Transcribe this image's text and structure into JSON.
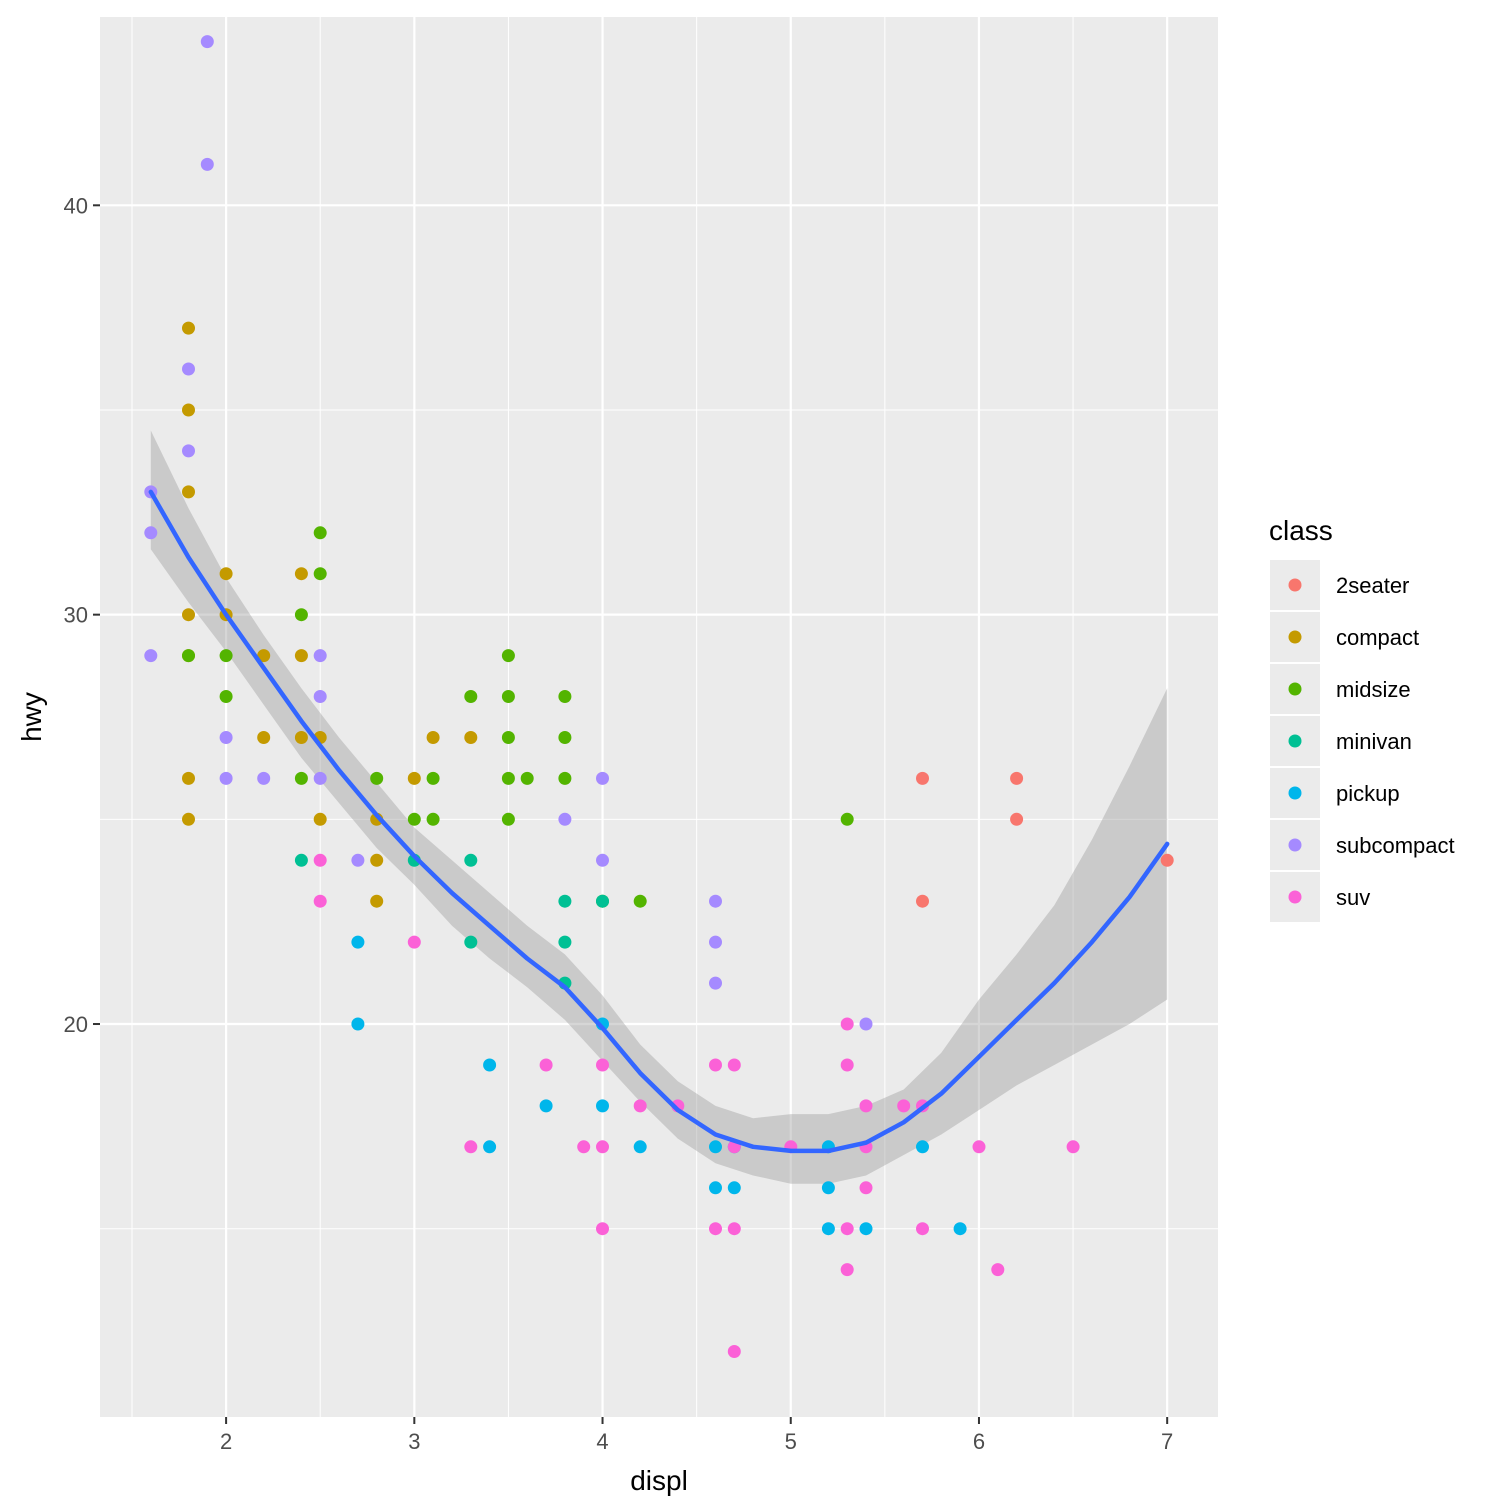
{
  "chart_data": {
    "type": "scatter",
    "title": "",
    "xlabel": "displ",
    "ylabel": "hwy",
    "xlim": [
      1.33,
      7.27
    ],
    "ylim": [
      10.4,
      44.6
    ],
    "x_ticks": [
      2,
      3,
      4,
      5,
      6,
      7
    ],
    "y_ticks": [
      20,
      30,
      40
    ],
    "x_tick_labels": [
      "2",
      "3",
      "4",
      "5",
      "6",
      "7"
    ],
    "y_tick_labels": [
      "20",
      "30",
      "40"
    ],
    "grid": true,
    "legend": {
      "title": "class",
      "placement": "right"
    },
    "series": [
      {
        "name": "2seater",
        "color": "#F8766D",
        "x": [
          5.7,
          5.7,
          6.2,
          6.2,
          7.0
        ],
        "y": [
          26,
          23,
          26,
          25,
          24
        ]
      },
      {
        "name": "compact",
        "color": "#C49A00",
        "x": [
          1.8,
          1.8,
          1.8,
          1.8,
          1.8,
          1.8,
          1.8,
          2.0,
          2.0,
          2.2,
          2.2,
          2.4,
          2.4,
          2.4,
          2.5,
          2.5,
          2.8,
          2.8,
          2.8,
          3.0,
          3.1,
          3.3
        ],
        "y": [
          37,
          35,
          33,
          30,
          29,
          26,
          25,
          31,
          30,
          29,
          27,
          31,
          29,
          27,
          27,
          25,
          25,
          24,
          23,
          26,
          27,
          27
        ]
      },
      {
        "name": "midsize",
        "color": "#53B400",
        "x": [
          1.8,
          2.0,
          2.0,
          2.4,
          2.4,
          2.5,
          2.5,
          2.8,
          3.0,
          3.1,
          3.1,
          3.3,
          3.5,
          3.5,
          3.5,
          3.5,
          3.5,
          3.6,
          3.8,
          3.8,
          3.8,
          4.0,
          4.2,
          5.3
        ],
        "y": [
          29,
          29,
          28,
          30,
          26,
          32,
          31,
          26,
          25,
          26,
          25,
          28,
          29,
          28,
          27,
          26,
          25,
          26,
          28,
          27,
          26,
          23,
          23,
          25
        ]
      },
      {
        "name": "minivan",
        "color": "#00C094",
        "x": [
          2.4,
          3.0,
          3.3,
          3.3,
          3.8,
          3.8,
          3.8,
          4.0
        ],
        "y": [
          24,
          24,
          24,
          22,
          23,
          22,
          21,
          23
        ]
      },
      {
        "name": "pickup",
        "color": "#00B6EB",
        "x": [
          2.7,
          2.7,
          3.4,
          3.4,
          3.7,
          4.0,
          4.0,
          4.2,
          4.6,
          4.6,
          4.7,
          4.7,
          5.2,
          5.2,
          5.2,
          5.4,
          5.7,
          5.9
        ],
        "y": [
          22,
          20,
          19,
          17,
          18,
          20,
          18,
          17,
          17,
          16,
          17,
          16,
          17,
          16,
          15,
          15,
          17,
          15
        ]
      },
      {
        "name": "subcompact",
        "color": "#A58AFF",
        "x": [
          1.6,
          1.6,
          1.6,
          1.8,
          1.8,
          1.9,
          1.9,
          2.0,
          2.0,
          2.2,
          2.5,
          2.5,
          2.5,
          2.7,
          3.8,
          4.0,
          4.0,
          4.6,
          4.6,
          4.6,
          5.4
        ],
        "y": [
          33,
          32,
          29,
          36,
          34,
          44,
          41,
          27,
          26,
          26,
          29,
          28,
          26,
          24,
          25,
          26,
          24,
          23,
          22,
          21,
          20
        ]
      },
      {
        "name": "suv",
        "color": "#FB61D7",
        "x": [
          2.5,
          2.5,
          3.0,
          3.3,
          3.7,
          3.9,
          4.0,
          4.0,
          4.0,
          4.2,
          4.4,
          4.6,
          4.6,
          4.7,
          4.7,
          4.7,
          4.7,
          5.0,
          5.3,
          5.3,
          5.3,
          5.3,
          5.4,
          5.4,
          5.4,
          5.6,
          5.7,
          5.7,
          6.0,
          6.1,
          6.5
        ],
        "y": [
          24,
          23,
          22,
          17,
          19,
          17,
          19,
          17,
          15,
          18,
          18,
          19,
          15,
          19,
          17,
          15,
          12,
          17,
          20,
          19,
          15,
          14,
          18,
          17,
          16,
          18,
          18,
          15,
          17,
          14,
          17
        ]
      }
    ],
    "smooth": {
      "name": "loess",
      "color": "#3366FF",
      "x": [
        1.6,
        1.8,
        2.0,
        2.2,
        2.4,
        2.6,
        2.8,
        3.0,
        3.2,
        3.4,
        3.6,
        3.8,
        4.0,
        4.2,
        4.4,
        4.6,
        4.8,
        5.0,
        5.2,
        5.4,
        5.6,
        5.8,
        6.0,
        6.2,
        6.4,
        6.6,
        6.8,
        7.0
      ],
      "y": [
        33.0,
        31.4,
        30.0,
        28.7,
        27.4,
        26.2,
        25.1,
        24.1,
        23.2,
        22.4,
        21.6,
        20.9,
        19.9,
        18.8,
        17.9,
        17.3,
        17.0,
        16.9,
        16.9,
        17.1,
        17.6,
        18.3,
        19.2,
        20.1,
        21.0,
        22.0,
        23.1,
        24.4
      ],
      "ymin": [
        31.6,
        30.3,
        29.1,
        27.8,
        26.5,
        25.4,
        24.3,
        23.4,
        22.4,
        21.6,
        20.9,
        20.1,
        19.1,
        18.1,
        17.2,
        16.6,
        16.3,
        16.1,
        16.1,
        16.3,
        16.8,
        17.3,
        17.9,
        18.5,
        19.0,
        19.5,
        20.0,
        20.6
      ],
      "ymax": [
        34.5,
        32.6,
        30.9,
        29.5,
        28.2,
        27.0,
        25.9,
        24.8,
        24.0,
        23.2,
        22.4,
        21.7,
        20.7,
        19.5,
        18.6,
        18.0,
        17.7,
        17.8,
        17.8,
        18.0,
        18.4,
        19.3,
        20.6,
        21.7,
        22.9,
        24.5,
        26.3,
        28.2
      ]
    }
  }
}
